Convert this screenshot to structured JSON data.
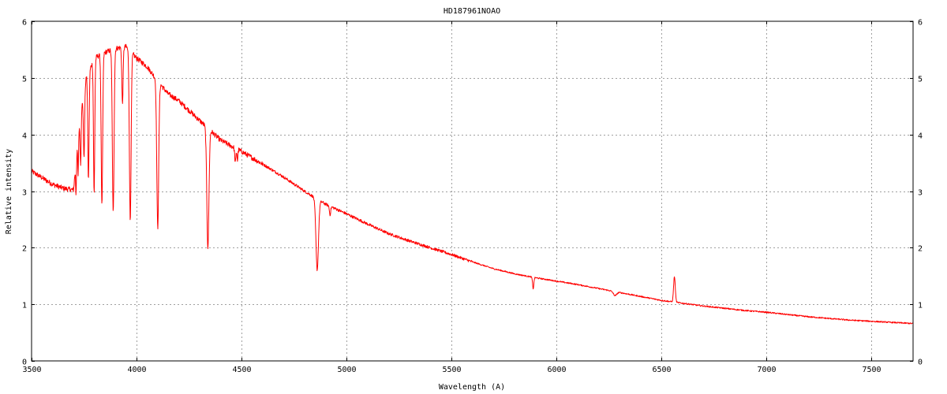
{
  "chart_data": {
    "type": "line",
    "title": "HD187961NOAO",
    "xlabel": "Wavelength (A)",
    "ylabel": "Relative intensity",
    "xlim": [
      3500,
      7700
    ],
    "ylim": [
      0,
      6
    ],
    "xticks": [
      3500,
      4000,
      4500,
      5000,
      5500,
      6000,
      6500,
      7000,
      7500
    ],
    "yticks": [
      0,
      1,
      2,
      3,
      4,
      5,
      6
    ],
    "grid": true,
    "legend": "none",
    "series_color": "#ff0000",
    "series": [
      {
        "continuum": {
          "x": [
            3500,
            3600,
            3650,
            3700,
            3720,
            3750,
            3800,
            3850,
            3900,
            3950,
            4000,
            4050,
            4100,
            4150,
            4200,
            4300,
            4400,
            4500,
            4600,
            4700,
            4800,
            4900,
            5000,
            5100,
            5200,
            5300,
            5400,
            5500,
            5600,
            5700,
            5800,
            5900,
            6000,
            6100,
            6200,
            6300,
            6400,
            6500,
            6600,
            6700,
            6800,
            6900,
            7000,
            7100,
            7200,
            7300,
            7400,
            7500,
            7600,
            7700
          ],
          "y": [
            3.35,
            3.12,
            3.05,
            3.02,
            3.9,
            4.9,
            5.35,
            5.45,
            5.52,
            5.55,
            5.35,
            5.2,
            4.95,
            4.72,
            4.6,
            4.25,
            3.9,
            3.7,
            3.48,
            3.25,
            3.0,
            2.77,
            2.6,
            2.42,
            2.25,
            2.12,
            2.0,
            1.88,
            1.75,
            1.63,
            1.54,
            1.47,
            1.41,
            1.35,
            1.28,
            1.21,
            1.14,
            1.07,
            1.02,
            0.97,
            0.93,
            0.89,
            0.86,
            0.82,
            0.78,
            0.75,
            0.72,
            0.7,
            0.68,
            0.66
          ]
        },
        "absorption_lines": [
          {
            "x": 3712,
            "depth": 0.6,
            "width": 2
          },
          {
            "x": 3722,
            "depth": 0.7,
            "width": 2
          },
          {
            "x": 3734,
            "depth": 0.9,
            "width": 2.5
          },
          {
            "x": 3750,
            "depth": 1.3,
            "width": 3
          },
          {
            "x": 3771,
            "depth": 1.9,
            "width": 3
          },
          {
            "x": 3798,
            "depth": 2.4,
            "width": 3
          },
          {
            "x": 3835,
            "depth": 2.7,
            "width": 3.5
          },
          {
            "x": 3889,
            "depth": 2.9,
            "width": 4
          },
          {
            "x": 3933,
            "depth": 1.0,
            "width": 3
          },
          {
            "x": 3970,
            "depth": 3.0,
            "width": 4
          },
          {
            "x": 4101,
            "depth": 2.6,
            "width": 4.5
          },
          {
            "x": 4340,
            "depth": 2.1,
            "width": 5
          },
          {
            "x": 4471,
            "depth": 0.25,
            "width": 3
          },
          {
            "x": 4481,
            "depth": 0.2,
            "width": 2
          },
          {
            "x": 4861,
            "depth": 1.25,
            "width": 6
          },
          {
            "x": 4922,
            "depth": 0.15,
            "width": 3
          },
          {
            "x": 5890,
            "depth": 0.2,
            "width": 3
          },
          {
            "x": 6280,
            "depth": 0.07,
            "width": 8
          }
        ],
        "emission_lines": [
          {
            "x": 6563,
            "height": 0.45,
            "width": 4
          }
        ]
      }
    ]
  }
}
